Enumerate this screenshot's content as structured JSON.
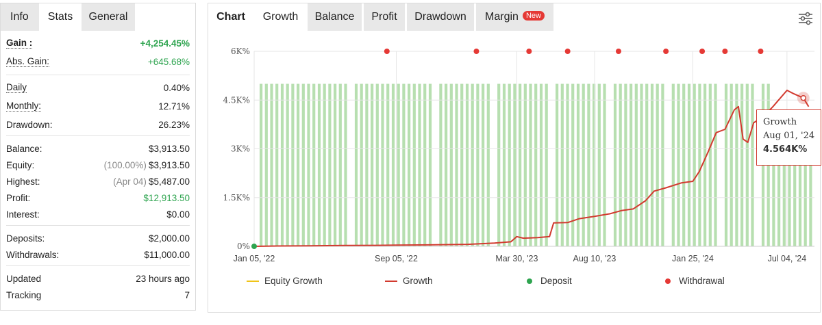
{
  "left_tabs": [
    {
      "label": "Info",
      "active": false
    },
    {
      "label": "Stats",
      "active": true
    },
    {
      "label": "General",
      "active": false
    }
  ],
  "stats": {
    "gain": {
      "label": "Gain :",
      "value": "+4,254.45%"
    },
    "abs_gain": {
      "label": "Abs. Gain:",
      "value": "+645.68%"
    },
    "daily": {
      "label": "Daily",
      "value": "0.40%"
    },
    "monthly": {
      "label": "Monthly:",
      "value": "12.71%"
    },
    "drawdown": {
      "label": "Drawdown:",
      "value": "26.23%"
    },
    "balance": {
      "label": "Balance:",
      "value": "$3,913.50"
    },
    "equity": {
      "label": "Equity:",
      "note": "(100.00%)",
      "value": "$3,913.50"
    },
    "highest": {
      "label": "Highest:",
      "note": "(Apr 04)",
      "value": "$5,487.00"
    },
    "profit": {
      "label": "Profit:",
      "value": "$12,913.50"
    },
    "interest": {
      "label": "Interest:",
      "value": "$0.00"
    },
    "deposits": {
      "label": "Deposits:",
      "value": "$2,000.00"
    },
    "withdrawals": {
      "label": "Withdrawals:",
      "value": "$11,000.00"
    },
    "updated": {
      "label": "Updated",
      "value": "23 hours ago"
    },
    "tracking": {
      "label": "Tracking",
      "value": "7"
    }
  },
  "right_tabs": [
    {
      "label": "Chart",
      "active": false
    },
    {
      "label": "Growth",
      "active": true
    },
    {
      "label": "Balance",
      "active": false
    },
    {
      "label": "Profit",
      "active": false
    },
    {
      "label": "Drawdown",
      "active": false
    },
    {
      "label": "Margin",
      "active": false,
      "badge": "New"
    }
  ],
  "icons": {
    "settings": "sliders-icon"
  },
  "colors": {
    "growth": "#d23a2f",
    "equity_growth": "#f0c419",
    "deposit": "#2ea44f",
    "withdrawal": "#e53935",
    "bars": "#b7dfb0"
  },
  "chart_data": {
    "type": "line",
    "x_tick_labels": [
      "Jan 05, '22",
      "Sep 05, '22",
      "Mar 30, '23",
      "Aug 10, '23",
      "Jan 25, '24",
      "Jul 04, '24"
    ],
    "y_tick_labels": [
      "0%",
      "1.5K%",
      "3K%",
      "4.5K%",
      "6K%"
    ],
    "ylim": [
      0,
      6000
    ],
    "x_range": [
      "Jan 05, '22",
      "Aug 20, '24"
    ],
    "grid": true,
    "legend": [
      {
        "name": "Equity Growth",
        "marker": "line"
      },
      {
        "name": "Growth",
        "marker": "line"
      },
      {
        "name": "Deposit",
        "marker": "dot"
      },
      {
        "name": "Withdrawal",
        "marker": "dot"
      }
    ],
    "legend_position": "bottom",
    "series": [
      {
        "name": "Growth",
        "points": [
          [
            "Jan 05, '22",
            0
          ],
          [
            "Feb 15, '22",
            10
          ],
          [
            "Apr 10, '22",
            15
          ],
          [
            "Jun 10, '22",
            25
          ],
          [
            "Aug 01, '22",
            30
          ],
          [
            "Sep 05, '22",
            35
          ],
          [
            "Nov 01, '22",
            45
          ],
          [
            "Jan 05, '23",
            60
          ],
          [
            "Feb 20, '23",
            100
          ],
          [
            "Mar 20, '23",
            140
          ],
          [
            "Mar 30, '23",
            300
          ],
          [
            "Apr 10, '23",
            250
          ],
          [
            "May 05, '23",
            270
          ],
          [
            "May 25, '23",
            300
          ],
          [
            "Jun 01, '23",
            720
          ],
          [
            "Jun 25, '23",
            730
          ],
          [
            "Jul 15, '23",
            850
          ],
          [
            "Aug 10, '23",
            920
          ],
          [
            "Sep 05, '23",
            1000
          ],
          [
            "Sep 25, '23",
            1100
          ],
          [
            "Oct 15, '23",
            1150
          ],
          [
            "Nov 05, '23",
            1400
          ],
          [
            "Nov 20, '23",
            1700
          ],
          [
            "Dec 10, '23",
            1800
          ],
          [
            "Jan 05, '24",
            1950
          ],
          [
            "Jan 25, '24",
            2000
          ],
          [
            "Feb 05, '24",
            2300
          ],
          [
            "Feb 20, '24",
            2900
          ],
          [
            "Mar 05, '24",
            3500
          ],
          [
            "Mar 20, '24",
            3600
          ],
          [
            "Apr 05, '24",
            4200
          ],
          [
            "Apr 12, '24",
            4300
          ],
          [
            "Apr 20, '24",
            3300
          ],
          [
            "Apr 28, '24",
            3200
          ],
          [
            "May 08, '24",
            3800
          ],
          [
            "May 25, '24",
            4000
          ],
          [
            "Jun 10, '24",
            4300
          ],
          [
            "Jul 04, '24",
            4800
          ],
          [
            "Jul 15, '24",
            4700
          ],
          [
            "Aug 01, '24",
            4564
          ],
          [
            "Aug 10, '24",
            4300
          ]
        ]
      },
      {
        "name": "Deposit",
        "points": [
          [
            "Jan 05, '22",
            0
          ]
        ]
      },
      {
        "name": "Withdrawal",
        "points": [
          [
            "Aug 20, '22",
            6000
          ],
          [
            "Jan 20, '23",
            6000
          ],
          [
            "Apr 20, '23",
            6000
          ],
          [
            "Jun 25, '23",
            6000
          ],
          [
            "Sep 20, '23",
            6000
          ],
          [
            "Dec 10, '23",
            6000
          ],
          [
            "Feb 10, '24",
            6000
          ],
          [
            "Mar 20, '24",
            6000
          ],
          [
            "May 20, '24",
            6000
          ]
        ]
      }
    ],
    "tooltip": {
      "series": "Growth",
      "date": "Aug 01, '24",
      "value": "4.564K%"
    }
  }
}
